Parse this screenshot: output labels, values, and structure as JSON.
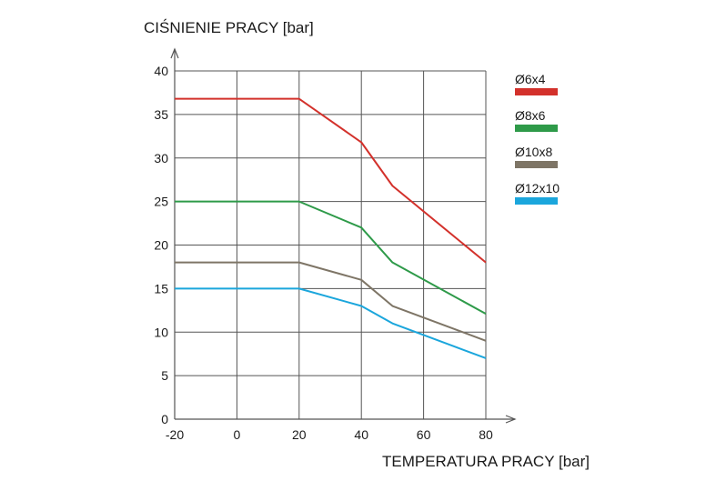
{
  "chart_data": {
    "type": "line",
    "ylabel": "CIŚNIENIE PRACY [bar]",
    "xlabel": "TEMPERATURA PRACY [bar]",
    "x_ticks": [
      -20,
      0,
      20,
      40,
      60,
      80
    ],
    "y_ticks": [
      0,
      5,
      10,
      15,
      20,
      25,
      30,
      35,
      40
    ],
    "xlim": [
      -20,
      80
    ],
    "ylim": [
      0,
      40
    ],
    "grid": true,
    "legend_position": "right",
    "series": [
      {
        "name": "Ø6x4",
        "color": "#d3312b",
        "x": [
          -20,
          20,
          40,
          50,
          80
        ],
        "y": [
          36.8,
          36.8,
          31.8,
          26.8,
          18
        ]
      },
      {
        "name": "Ø8x6",
        "color": "#2e9a49",
        "x": [
          -20,
          20,
          40,
          50,
          80
        ],
        "y": [
          25,
          25,
          22,
          18,
          12.1
        ]
      },
      {
        "name": "Ø10x8",
        "color": "#7e7566",
        "x": [
          -20,
          20,
          40,
          50,
          80
        ],
        "y": [
          18,
          18,
          16,
          13,
          9
        ]
      },
      {
        "name": "Ø12x10",
        "color": "#1ba6dc",
        "x": [
          -20,
          20,
          40,
          50,
          80
        ],
        "y": [
          15,
          15,
          13,
          11,
          7
        ]
      }
    ]
  }
}
